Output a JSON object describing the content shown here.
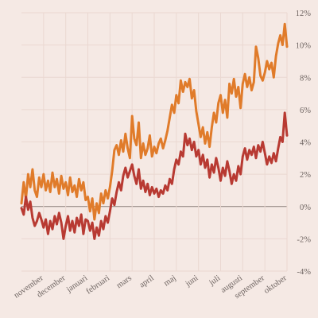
{
  "chart_data": {
    "type": "line",
    "title": "",
    "xlabel": "",
    "ylabel": "",
    "ylim": [
      -4,
      12
    ],
    "yticks": [
      -4,
      -2,
      0,
      2,
      4,
      6,
      8,
      10,
      12
    ],
    "ytick_labels": [
      "-4%",
      "-2%",
      "0%",
      "2%",
      "4%",
      "6%",
      "8%",
      "10%",
      "12%"
    ],
    "x_range": [
      0,
      12
    ],
    "month_ticks": [
      {
        "label": "november",
        "x": 1
      },
      {
        "label": "december",
        "x": 2
      },
      {
        "label": "januari",
        "x": 3
      },
      {
        "label": "februari",
        "x": 4
      },
      {
        "label": "mars",
        "x": 5
      },
      {
        "label": "april",
        "x": 6
      },
      {
        "label": "maj",
        "x": 7
      },
      {
        "label": "juni",
        "x": 8
      },
      {
        "label": "juli",
        "x": 9
      },
      {
        "label": "augusti",
        "x": 10
      },
      {
        "label": "september",
        "x": 11
      },
      {
        "label": "oktober",
        "x": 12
      }
    ],
    "grid": true,
    "legend": "none",
    "series": [
      {
        "color": "#e07b2a",
        "points": [
          [
            0.0,
            0.2
          ],
          [
            0.1,
            1.5
          ],
          [
            0.2,
            0.5
          ],
          [
            0.3,
            2.0
          ],
          [
            0.4,
            1.2
          ],
          [
            0.5,
            2.3
          ],
          [
            0.6,
            1.0
          ],
          [
            0.7,
            0.6
          ],
          [
            0.8,
            1.8
          ],
          [
            0.9,
            1.2
          ],
          [
            1.0,
            2.0
          ],
          [
            1.1,
            1.0
          ],
          [
            1.2,
            1.6
          ],
          [
            1.3,
            0.9
          ],
          [
            1.4,
            2.1
          ],
          [
            1.5,
            1.2
          ],
          [
            1.6,
            1.7
          ],
          [
            1.7,
            0.8
          ],
          [
            1.8,
            1.9
          ],
          [
            1.9,
            1.1
          ],
          [
            2.0,
            1.5
          ],
          [
            2.1,
            0.7
          ],
          [
            2.2,
            1.8
          ],
          [
            2.3,
            0.9
          ],
          [
            2.4,
            1.3
          ],
          [
            2.5,
            0.6
          ],
          [
            2.6,
            1.7
          ],
          [
            2.7,
            1.0
          ],
          [
            2.8,
            1.5
          ],
          [
            2.9,
            0.4
          ],
          [
            3.0,
            0.6
          ],
          [
            3.1,
            -0.3
          ],
          [
            3.2,
            0.5
          ],
          [
            3.3,
            -0.8
          ],
          [
            3.4,
            0.2
          ],
          [
            3.5,
            -0.4
          ],
          [
            3.6,
            0.8
          ],
          [
            3.7,
            0.2
          ],
          [
            3.8,
            1.0
          ],
          [
            3.9,
            0.5
          ],
          [
            4.0,
            1.2
          ],
          [
            4.1,
            2.2
          ],
          [
            4.2,
            3.5
          ],
          [
            4.3,
            3.8
          ],
          [
            4.4,
            3.2
          ],
          [
            4.5,
            4.1
          ],
          [
            4.6,
            3.4
          ],
          [
            4.7,
            4.5
          ],
          [
            4.8,
            3.6
          ],
          [
            4.9,
            3.0
          ],
          [
            5.0,
            5.6
          ],
          [
            5.1,
            4.2
          ],
          [
            5.2,
            3.8
          ],
          [
            5.3,
            5.2
          ],
          [
            5.4,
            3.0
          ],
          [
            5.5,
            3.9
          ],
          [
            5.6,
            3.2
          ],
          [
            5.7,
            3.6
          ],
          [
            5.8,
            4.4
          ],
          [
            5.9,
            3.1
          ],
          [
            6.0,
            3.7
          ],
          [
            6.1,
            3.3
          ],
          [
            6.2,
            3.9
          ],
          [
            6.3,
            4.2
          ],
          [
            6.4,
            3.6
          ],
          [
            6.5,
            4.1
          ],
          [
            6.6,
            4.7
          ],
          [
            6.7,
            5.5
          ],
          [
            6.8,
            6.3
          ],
          [
            6.9,
            5.8
          ],
          [
            7.0,
            6.9
          ],
          [
            7.1,
            6.4
          ],
          [
            7.2,
            7.8
          ],
          [
            7.3,
            7.1
          ],
          [
            7.4,
            7.7
          ],
          [
            7.5,
            7.4
          ],
          [
            7.6,
            7.9
          ],
          [
            7.7,
            6.7
          ],
          [
            7.8,
            7.2
          ],
          [
            7.9,
            5.9
          ],
          [
            8.0,
            5.1
          ],
          [
            8.1,
            4.3
          ],
          [
            8.2,
            4.9
          ],
          [
            8.3,
            3.9
          ],
          [
            8.4,
            4.6
          ],
          [
            8.5,
            3.7
          ],
          [
            8.6,
            4.9
          ],
          [
            8.7,
            5.8
          ],
          [
            8.8,
            5.2
          ],
          [
            8.9,
            6.4
          ],
          [
            9.0,
            6.9
          ],
          [
            9.1,
            5.8
          ],
          [
            9.2,
            6.6
          ],
          [
            9.3,
            5.5
          ],
          [
            9.4,
            7.6
          ],
          [
            9.5,
            7.0
          ],
          [
            9.6,
            7.9
          ],
          [
            9.7,
            6.8
          ],
          [
            9.8,
            7.4
          ],
          [
            9.9,
            6.1
          ],
          [
            10.0,
            7.6
          ],
          [
            10.1,
            8.2
          ],
          [
            10.2,
            7.4
          ],
          [
            10.3,
            8.0
          ],
          [
            10.4,
            7.2
          ],
          [
            10.5,
            7.7
          ],
          [
            10.6,
            9.9
          ],
          [
            10.7,
            9.2
          ],
          [
            10.8,
            8.1
          ],
          [
            10.9,
            7.8
          ],
          [
            11.0,
            8.3
          ],
          [
            11.1,
            9.0
          ],
          [
            11.2,
            8.5
          ],
          [
            11.3,
            8.9
          ],
          [
            11.4,
            8.0
          ],
          [
            11.5,
            9.3
          ],
          [
            11.6,
            10.1
          ],
          [
            11.7,
            10.6
          ],
          [
            11.8,
            10.0
          ],
          [
            11.9,
            11.3
          ],
          [
            12.0,
            9.9
          ]
        ]
      },
      {
        "color": "#b83a32",
        "points": [
          [
            0.0,
            -0.1
          ],
          [
            0.1,
            -0.5
          ],
          [
            0.2,
            0.6
          ],
          [
            0.3,
            -0.2
          ],
          [
            0.4,
            0.3
          ],
          [
            0.5,
            -0.7
          ],
          [
            0.6,
            -1.2
          ],
          [
            0.7,
            -0.9
          ],
          [
            0.8,
            -0.4
          ],
          [
            0.9,
            -0.8
          ],
          [
            1.0,
            -1.3
          ],
          [
            1.1,
            -0.8
          ],
          [
            1.2,
            -1.7
          ],
          [
            1.3,
            -0.9
          ],
          [
            1.4,
            -1.4
          ],
          [
            1.5,
            -0.6
          ],
          [
            1.6,
            -1.1
          ],
          [
            1.7,
            -0.4
          ],
          [
            1.8,
            -1.0
          ],
          [
            1.9,
            -2.0
          ],
          [
            2.0,
            -1.2
          ],
          [
            2.1,
            -0.6
          ],
          [
            2.2,
            -1.5
          ],
          [
            2.3,
            -0.9
          ],
          [
            2.4,
            -1.6
          ],
          [
            2.5,
            -0.7
          ],
          [
            2.6,
            -1.2
          ],
          [
            2.7,
            -0.5
          ],
          [
            2.8,
            -1.7
          ],
          [
            2.9,
            -0.8
          ],
          [
            3.0,
            -0.9
          ],
          [
            3.1,
            -1.5
          ],
          [
            3.2,
            -1.0
          ],
          [
            3.3,
            -2.0
          ],
          [
            3.4,
            -1.3
          ],
          [
            3.5,
            -1.8
          ],
          [
            3.6,
            -0.9
          ],
          [
            3.7,
            -1.4
          ],
          [
            3.8,
            -0.6
          ],
          [
            3.9,
            -1.0
          ],
          [
            4.0,
            -0.3
          ],
          [
            4.1,
            0.5
          ],
          [
            4.2,
            0.1
          ],
          [
            4.3,
            0.9
          ],
          [
            4.4,
            1.5
          ],
          [
            4.5,
            1.0
          ],
          [
            4.6,
            1.9
          ],
          [
            4.7,
            2.4
          ],
          [
            4.8,
            1.8
          ],
          [
            4.9,
            2.2
          ],
          [
            5.0,
            2.6
          ],
          [
            5.1,
            1.9
          ],
          [
            5.2,
            1.4
          ],
          [
            5.3,
            2.3
          ],
          [
            5.4,
            1.1
          ],
          [
            5.5,
            1.6
          ],
          [
            5.6,
            0.9
          ],
          [
            5.7,
            1.4
          ],
          [
            5.8,
            0.7
          ],
          [
            5.9,
            1.2
          ],
          [
            6.0,
            0.8
          ],
          [
            6.1,
            1.1
          ],
          [
            6.2,
            0.6
          ],
          [
            6.3,
            1.0
          ],
          [
            6.4,
            0.8
          ],
          [
            6.5,
            1.3
          ],
          [
            6.6,
            1.0
          ],
          [
            6.7,
            1.7
          ],
          [
            6.8,
            1.4
          ],
          [
            6.9,
            2.3
          ],
          [
            7.0,
            2.9
          ],
          [
            7.1,
            2.6
          ],
          [
            7.2,
            3.4
          ],
          [
            7.3,
            3.1
          ],
          [
            7.4,
            4.5
          ],
          [
            7.5,
            3.8
          ],
          [
            7.6,
            4.2
          ],
          [
            7.7,
            3.5
          ],
          [
            7.8,
            4.0
          ],
          [
            7.9,
            3.1
          ],
          [
            8.0,
            3.5
          ],
          [
            8.1,
            2.6
          ],
          [
            8.2,
            3.2
          ],
          [
            8.3,
            2.4
          ],
          [
            8.4,
            2.9
          ],
          [
            8.5,
            1.8
          ],
          [
            8.6,
            2.6
          ],
          [
            8.7,
            2.1
          ],
          [
            8.8,
            3.0
          ],
          [
            8.9,
            2.4
          ],
          [
            9.0,
            1.6
          ],
          [
            9.1,
            2.4
          ],
          [
            9.2,
            1.9
          ],
          [
            9.3,
            2.8
          ],
          [
            9.4,
            2.2
          ],
          [
            9.5,
            1.4
          ],
          [
            9.6,
            2.0
          ],
          [
            9.7,
            1.6
          ],
          [
            9.8,
            2.5
          ],
          [
            9.9,
            2.0
          ],
          [
            10.0,
            3.1
          ],
          [
            10.1,
            3.6
          ],
          [
            10.2,
            2.9
          ],
          [
            10.3,
            3.5
          ],
          [
            10.4,
            3.2
          ],
          [
            10.5,
            3.7
          ],
          [
            10.6,
            3.0
          ],
          [
            10.7,
            3.8
          ],
          [
            10.8,
            3.4
          ],
          [
            10.9,
            4.0
          ],
          [
            11.0,
            3.3
          ],
          [
            11.1,
            2.6
          ],
          [
            11.2,
            3.1
          ],
          [
            11.3,
            2.7
          ],
          [
            11.4,
            3.3
          ],
          [
            11.5,
            2.8
          ],
          [
            11.6,
            3.6
          ],
          [
            11.7,
            4.3
          ],
          [
            11.8,
            4.0
          ],
          [
            11.9,
            5.8
          ],
          [
            12.0,
            4.4
          ]
        ]
      }
    ]
  }
}
